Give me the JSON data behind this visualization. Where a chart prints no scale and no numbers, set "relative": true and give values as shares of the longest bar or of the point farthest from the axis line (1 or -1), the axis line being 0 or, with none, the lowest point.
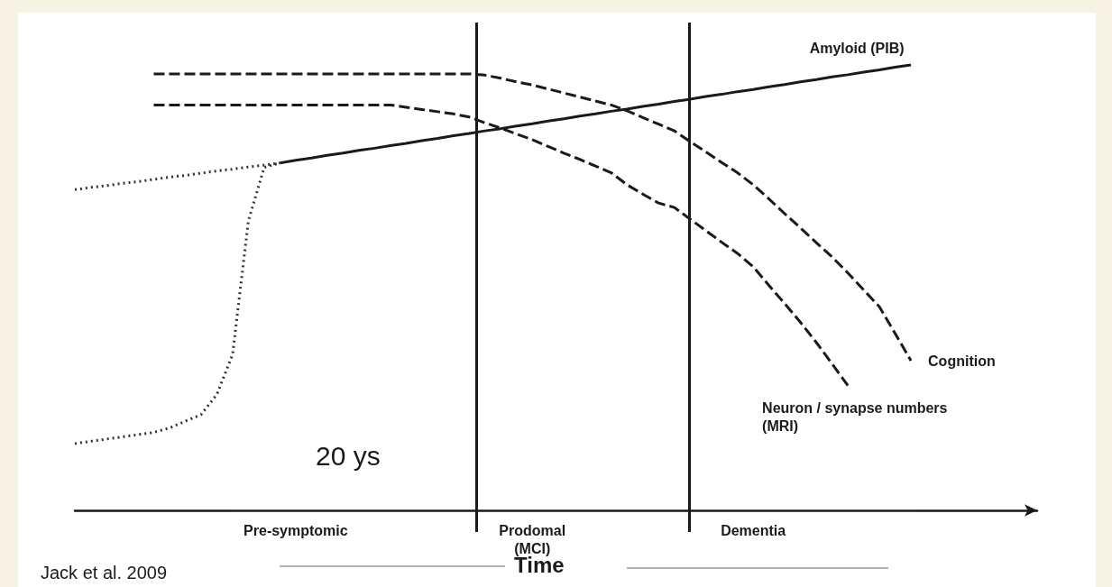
{
  "chart_data": {
    "type": "line",
    "relative": true,
    "xlabel": "Time",
    "tick_labels": "x",
    "grid": false,
    "legend": false,
    "marker": "none",
    "categories": [
      null,
      null,
      null,
      null,
      null,
      null,
      null,
      null,
      null,
      null,
      null,
      null,
      null,
      null,
      "Pre-symptomic",
      null,
      null,
      null,
      null,
      null,
      null,
      null,
      null,
      null,
      null,
      null,
      null,
      null,
      null,
      "Prodomal\n(MCI)",
      null,
      null,
      null,
      null,
      null,
      null,
      null,
      null,
      null,
      null,
      null,
      null,
      null,
      "Dementia",
      null,
      null,
      null,
      null,
      null,
      null,
      null,
      null,
      null,
      null,
      null,
      null,
      null,
      null,
      null,
      null,
      null,
      null
    ],
    "series": [
      {
        "name": "Amyloid (PIB)",
        "color": "#1a1a1a",
        "line_style": "solid",
        "values": [
          null,
          null,
          null,
          null,
          null,
          null,
          null,
          null,
          null,
          null,
          null,
          null,
          null,
          0.78,
          0.786,
          0.791,
          0.797,
          0.802,
          0.808,
          0.813,
          0.819,
          0.824,
          0.83,
          0.835,
          0.841,
          0.846,
          0.852,
          0.857,
          0.863,
          0.868,
          0.874,
          0.879,
          0.885,
          0.89,
          0.896,
          0.901,
          0.907,
          0.912,
          0.918,
          0.923,
          0.929,
          0.934,
          0.94,
          0.945,
          0.951,
          0.956,
          0.962,
          0.967,
          0.973,
          0.978,
          0.984,
          0.989,
          0.995,
          1.0,
          null,
          null,
          null,
          null,
          null,
          null,
          null,
          null
        ]
      },
      {
        "name": "Cognition",
        "color": "#1a1a1a",
        "line_style": "dashed",
        "values": [
          null,
          null,
          null,
          null,
          null,
          0.98,
          0.98,
          0.98,
          0.98,
          0.98,
          0.98,
          0.98,
          0.98,
          0.98,
          0.98,
          0.98,
          0.98,
          0.98,
          0.98,
          0.98,
          0.98,
          0.98,
          0.98,
          0.98,
          0.98,
          0.98,
          0.977,
          0.97,
          0.962,
          0.955,
          0.946,
          0.937,
          0.928,
          0.919,
          0.91,
          0.897,
          0.882,
          0.867,
          0.852,
          0.828,
          0.805,
          0.781,
          0.758,
          0.731,
          0.699,
          0.666,
          0.634,
          0.601,
          0.569,
          0.533,
          0.495,
          0.457,
          0.397,
          0.336,
          null,
          null,
          null,
          null,
          null,
          null,
          null,
          null
        ]
      },
      {
        "name": "Neuron / synapse numbers (MRI)",
        "color": "#1a1a1a",
        "line_style": "dashed",
        "values": [
          null,
          null,
          null,
          null,
          null,
          0.91,
          0.91,
          0.91,
          0.91,
          0.91,
          0.91,
          0.91,
          0.91,
          0.91,
          0.91,
          0.91,
          0.91,
          0.91,
          0.91,
          0.91,
          0.91,
          0.905,
          0.9,
          0.895,
          0.89,
          0.883,
          0.87,
          0.858,
          0.845,
          0.832,
          0.817,
          0.802,
          0.788,
          0.773,
          0.758,
          0.731,
          0.71,
          0.69,
          0.68,
          0.654,
          0.628,
          0.602,
          0.577,
          0.547,
          0.505,
          0.464,
          0.422,
          0.377,
          0.329,
          0.28,
          null,
          null,
          null,
          null,
          null,
          null,
          null,
          null,
          null,
          null,
          null,
          null
        ]
      },
      {
        "color": "#333333",
        "line_style": "dotted",
        "values": [
          0.72,
          0.725,
          0.729,
          0.734,
          0.738,
          0.743,
          0.748,
          0.752,
          0.757,
          0.762,
          0.766,
          0.771,
          0.775,
          0.78,
          null,
          null,
          null,
          null,
          null,
          null,
          null,
          null,
          null,
          null,
          null,
          null,
          null,
          null,
          null,
          null,
          null,
          null,
          null,
          null,
          null,
          null,
          null,
          null,
          null,
          null,
          null,
          null,
          null,
          null,
          null,
          null,
          null,
          null,
          null,
          null,
          null,
          null,
          null,
          null,
          null,
          null,
          null,
          null,
          null,
          null,
          null,
          null
        ]
      },
      {
        "color": "#333333",
        "line_style": "dotted",
        "values": [
          0.15,
          0.155,
          0.16,
          0.165,
          0.17,
          0.175,
          0.185,
          0.2,
          0.215,
          0.26,
          0.35,
          0.65,
          0.77,
          0.78,
          null,
          null,
          null,
          null,
          null,
          null,
          null,
          null,
          null,
          null,
          null,
          null,
          null,
          null,
          null,
          null,
          null,
          null,
          null,
          null,
          null,
          null,
          null,
          null,
          null,
          null,
          null,
          null,
          null,
          null,
          null,
          null,
          null,
          null,
          null,
          null,
          null,
          null,
          null,
          null,
          null,
          null,
          null,
          null,
          null,
          null,
          null,
          null
        ]
      }
    ],
    "annotations": [
      "20 ys",
      "Jack et al. 2009"
    ]
  }
}
